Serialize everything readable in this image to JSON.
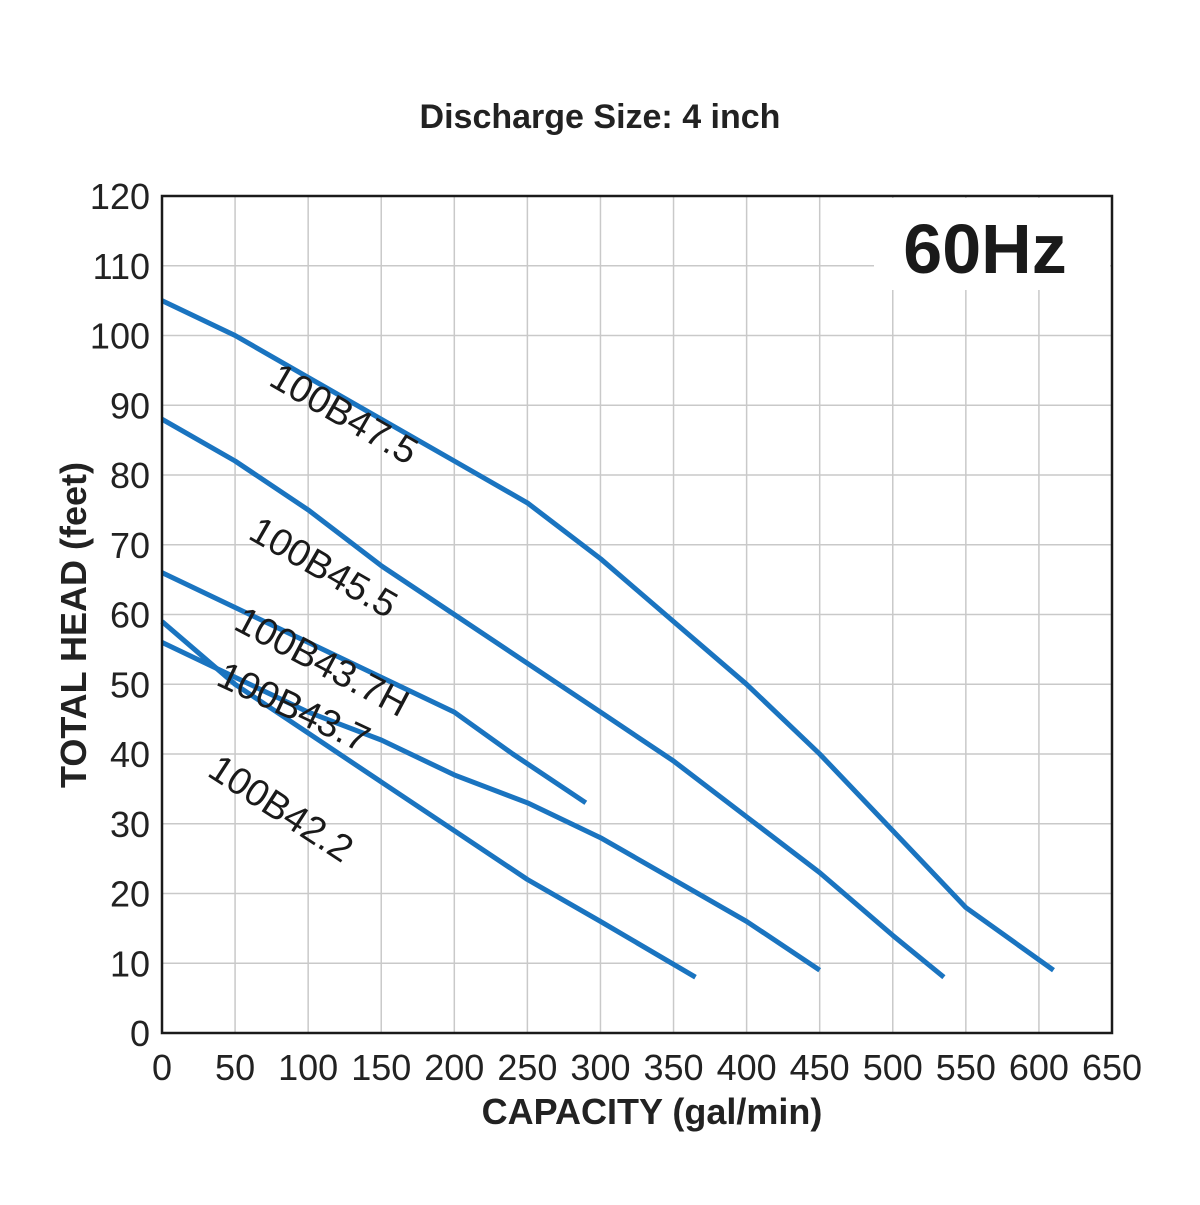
{
  "chart_data": {
    "type": "line",
    "title": "Discharge Size: 4 inch",
    "xlabel": "CAPACITY (gal/min)",
    "ylabel": "TOTAL HEAD (feet)",
    "badge": "60Hz",
    "xlim": [
      0,
      650
    ],
    "ylim": [
      0,
      120
    ],
    "xticks": [
      0,
      50,
      100,
      150,
      200,
      250,
      300,
      350,
      400,
      450,
      500,
      550,
      600,
      650
    ],
    "yticks": [
      0,
      10,
      20,
      30,
      40,
      50,
      60,
      70,
      80,
      90,
      100,
      110,
      120
    ],
    "grid": true,
    "line_color": "#1a74c0",
    "series": [
      {
        "name": "100B47.5",
        "points": [
          [
            0,
            105
          ],
          [
            50,
            100
          ],
          [
            100,
            94
          ],
          [
            150,
            88
          ],
          [
            200,
            82
          ],
          [
            250,
            76
          ],
          [
            300,
            68
          ],
          [
            350,
            59
          ],
          [
            400,
            50
          ],
          [
            450,
            40
          ],
          [
            500,
            29
          ],
          [
            550,
            18
          ],
          [
            610,
            9
          ]
        ]
      },
      {
        "name": "100B45.5",
        "points": [
          [
            0,
            88
          ],
          [
            50,
            82
          ],
          [
            100,
            75
          ],
          [
            150,
            67
          ],
          [
            200,
            60
          ],
          [
            250,
            53
          ],
          [
            300,
            46
          ],
          [
            350,
            39
          ],
          [
            400,
            31
          ],
          [
            450,
            23
          ],
          [
            500,
            14
          ],
          [
            535,
            8
          ]
        ]
      },
      {
        "name": "100B43.7H",
        "points": [
          [
            0,
            66
          ],
          [
            50,
            61
          ],
          [
            100,
            56
          ],
          [
            150,
            51
          ],
          [
            200,
            46
          ],
          [
            240,
            40
          ],
          [
            290,
            33
          ]
        ]
      },
      {
        "name": "100B43.7",
        "points": [
          [
            0,
            56
          ],
          [
            50,
            51
          ],
          [
            100,
            46
          ],
          [
            150,
            42
          ],
          [
            200,
            37
          ],
          [
            250,
            33
          ],
          [
            300,
            28
          ],
          [
            350,
            22
          ],
          [
            400,
            16
          ],
          [
            450,
            9
          ]
        ]
      },
      {
        "name": "100B42.2",
        "points": [
          [
            0,
            59
          ],
          [
            50,
            50
          ],
          [
            100,
            43
          ],
          [
            150,
            36
          ],
          [
            200,
            29
          ],
          [
            250,
            22
          ],
          [
            300,
            16
          ],
          [
            365,
            8
          ]
        ]
      }
    ]
  }
}
